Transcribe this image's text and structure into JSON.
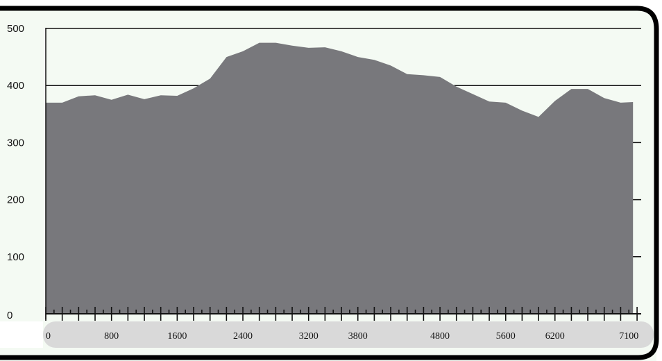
{
  "chart_data": {
    "type": "area",
    "title": "",
    "xlabel": "",
    "ylabel": "",
    "xlim": [
      0,
      7250
    ],
    "ylim": [
      0,
      500
    ],
    "grid": true,
    "y_ticks": [
      "0",
      "100",
      "200",
      "300",
      "400",
      "500"
    ],
    "x_ticks": [
      "0",
      "800",
      "1600",
      "2400",
      "3200",
      "3800",
      "4800",
      "5600",
      "6200",
      "7100"
    ],
    "colors": {
      "area": "#78787c",
      "background": "#f4faf3",
      "grid": "#111111",
      "frame": "#000000",
      "axis_band": "#d9d9d9"
    },
    "series": [
      {
        "x": [
          0,
          200,
          400,
          600,
          800,
          1000,
          1200,
          1400,
          1600,
          1800,
          2000,
          2200,
          2400,
          2600,
          2800,
          3000,
          3200,
          3400,
          3600,
          3800,
          4000,
          4200,
          4400,
          4600,
          4800,
          5000,
          5200,
          5400,
          5600,
          5800,
          6000,
          6200,
          6400,
          6600,
          6800,
          7000,
          7150
        ],
        "y": [
          370,
          370,
          381,
          383,
          375,
          384,
          376,
          383,
          382,
          395,
          412,
          450,
          460,
          475,
          475,
          470,
          466,
          467,
          460,
          450,
          445,
          435,
          420,
          418,
          415,
          398,
          385,
          372,
          370,
          356,
          345,
          373,
          394,
          394,
          378,
          370,
          371
        ]
      }
    ]
  }
}
